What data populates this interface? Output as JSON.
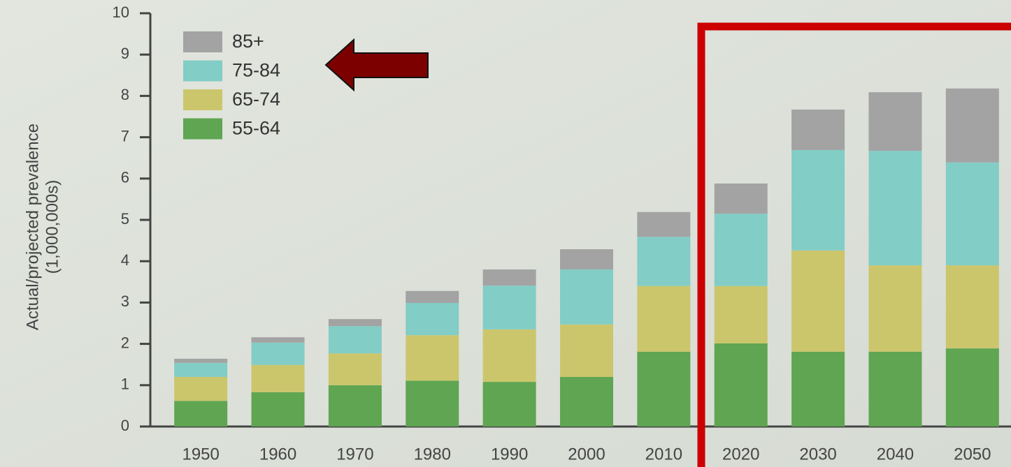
{
  "chart_data": {
    "type": "stacked_bar",
    "y_label": "Actual/projected prevalence",
    "y_label_unit": "(1,000,000s)",
    "categories": [
      "1950",
      "1960",
      "1970",
      "1980",
      "1990",
      "2000",
      "2010",
      "2020",
      "2030",
      "2040",
      "2050"
    ],
    "series": [
      {
        "name": "55-64",
        "color": "#5fa552",
        "values": [
          0.62,
          0.83,
          1.0,
          1.11,
          1.08,
          1.2,
          1.81,
          2.01,
          1.81,
          1.81,
          1.89
        ]
      },
      {
        "name": "65-74",
        "color": "#cbc66c",
        "values": [
          0.58,
          0.66,
          0.77,
          1.1,
          1.27,
          1.27,
          1.59,
          1.39,
          2.45,
          2.09,
          2.01
        ]
      },
      {
        "name": "75-84",
        "color": "#82cdc6",
        "values": [
          0.34,
          0.54,
          0.66,
          0.78,
          1.06,
          1.33,
          1.19,
          1.75,
          2.43,
          2.77,
          2.49
        ]
      },
      {
        "name": "85+",
        "color": "#a3a3a3",
        "values": [
          0.1,
          0.13,
          0.17,
          0.29,
          0.39,
          0.49,
          0.6,
          0.73,
          0.98,
          1.42,
          1.79
        ]
      }
    ],
    "ylim": [
      0,
      10
    ],
    "yticks": [
      0,
      1,
      2,
      3,
      4,
      5,
      6,
      7,
      8,
      9,
      10
    ],
    "legend": "upper-left"
  }
}
